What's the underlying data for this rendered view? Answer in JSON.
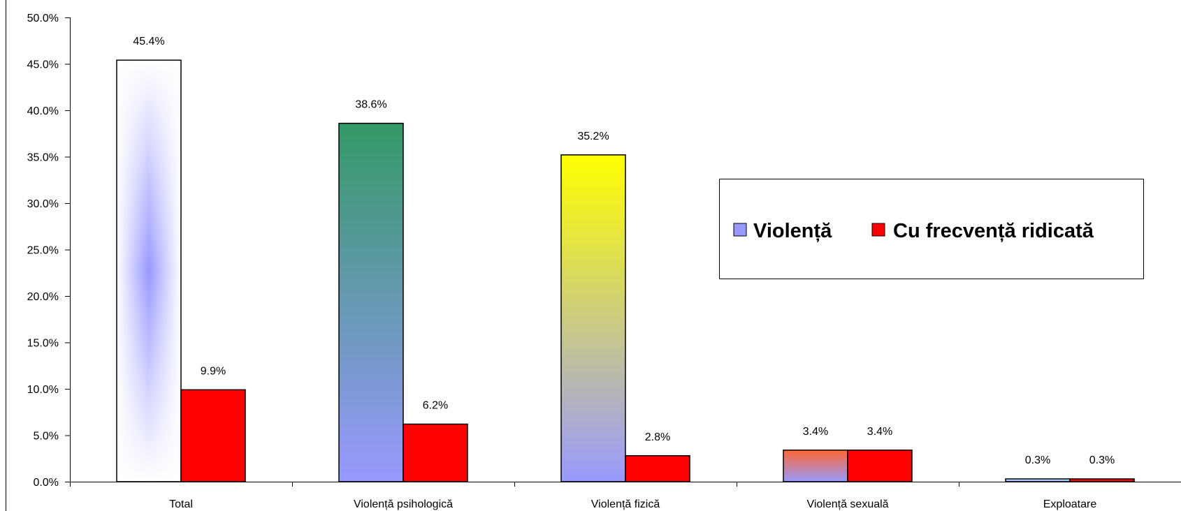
{
  "chart_data": {
    "type": "bar",
    "categories": [
      "Total",
      "Violență psihologică",
      "Violență fizică",
      "Violență sexuală",
      "Exploatare"
    ],
    "series": [
      {
        "name": "Violență",
        "values": [
          45.4,
          38.6,
          35.2,
          3.4,
          0.3
        ],
        "color": "#9999ff"
      },
      {
        "name": "Cu frecvență ridicată",
        "values": [
          9.9,
          6.2,
          2.8,
          3.4,
          0.3
        ],
        "color": "#ff0000"
      }
    ],
    "data_labels": [
      [
        "45.4%",
        "38.6%",
        "35.2%",
        "3.4%",
        "0.3%"
      ],
      [
        "9.9%",
        "6.2%",
        "2.8%",
        "3.4%",
        "0.3%"
      ]
    ],
    "y_ticks": [
      "0.0%",
      "5.0%",
      "10.0%",
      "15.0%",
      "20.0%",
      "25.0%",
      "30.0%",
      "35.0%",
      "40.0%",
      "45.0%",
      "50.0%"
    ],
    "ylim": [
      0,
      50
    ],
    "grid": false,
    "legend_position": "right"
  }
}
